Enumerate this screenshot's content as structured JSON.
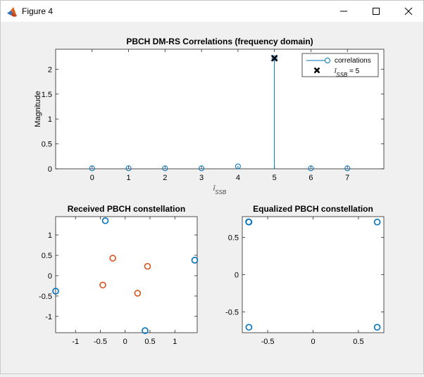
{
  "window": {
    "title": "Figure 4",
    "app_icon": "matlab-icon",
    "controls": [
      "minimize-icon",
      "maximize-icon",
      "close-icon"
    ]
  },
  "chart_data": [
    {
      "type": "stem",
      "title": "PBCH DM-RS Correlations (frequency domain)",
      "xlabel": "ī_SSB",
      "ylabel": "Magnitude",
      "xlim": [
        -1,
        8
      ],
      "ylim": [
        0,
        2.4
      ],
      "xticks": [
        0,
        1,
        2,
        3,
        4,
        5,
        6,
        7
      ],
      "yticks": [
        0,
        0.5,
        1,
        1.5,
        2
      ],
      "ytick_labels": [
        "0",
        "0.5",
        "1",
        "1.5",
        "2"
      ],
      "series": [
        {
          "name": "correlations",
          "x": [
            0,
            1,
            2,
            3,
            4,
            5,
            6,
            7
          ],
          "y": [
            0.01,
            0.01,
            0.01,
            0.01,
            0.05,
            2.22,
            0.01,
            0.01
          ],
          "color": "#0072BD"
        },
        {
          "name": "ī_SSB = 5",
          "x": [
            5
          ],
          "y": [
            2.22
          ],
          "color": "#000000"
        }
      ],
      "legend": {
        "position": "top-right",
        "entries": [
          "correlations",
          "ī_SSB = 5"
        ]
      }
    },
    {
      "type": "scatter",
      "title": "Received PBCH constellation",
      "xlim": [
        -1.4,
        1.45
      ],
      "ylim": [
        -1.4,
        1.45
      ],
      "xticks": [
        -1,
        -0.5,
        0,
        0.5,
        1
      ],
      "xtick_labels": [
        "-1",
        "-0.5",
        "0",
        "0.5",
        "1"
      ],
      "yticks": [
        -1,
        -0.5,
        0,
        0.5,
        1
      ],
      "ytick_labels": [
        "-1",
        "-0.5",
        "0",
        "0.5",
        "1"
      ],
      "series": [
        {
          "color": "#0072BD",
          "x": [
            -0.4,
            1.4,
            0.4,
            -1.4
          ],
          "y": [
            1.35,
            0.38,
            -1.35,
            -0.38
          ]
        },
        {
          "color": "#D95319",
          "x": [
            -0.25,
            0.45,
            0.25,
            -0.45
          ],
          "y": [
            0.43,
            0.23,
            -0.43,
            -0.23
          ]
        }
      ]
    },
    {
      "type": "scatter",
      "title": "Equalized PBCH constellation",
      "xlim": [
        -0.78,
        0.78
      ],
      "ylim": [
        -0.78,
        0.78
      ],
      "xticks": [
        -0.5,
        0,
        0.5
      ],
      "xtick_labels": [
        "-0.5",
        "0",
        "0.5"
      ],
      "yticks": [
        -0.5,
        0,
        0.5
      ],
      "ytick_labels": [
        "-0.5",
        "0",
        "0.5"
      ],
      "series": [
        {
          "color": "#0072BD",
          "x": [
            -0.707,
            -0.71,
            0.707,
            -0.707,
            0.707
          ],
          "y": [
            0.707,
            0.71,
            0.707,
            -0.707,
            -0.707
          ]
        }
      ]
    }
  ]
}
